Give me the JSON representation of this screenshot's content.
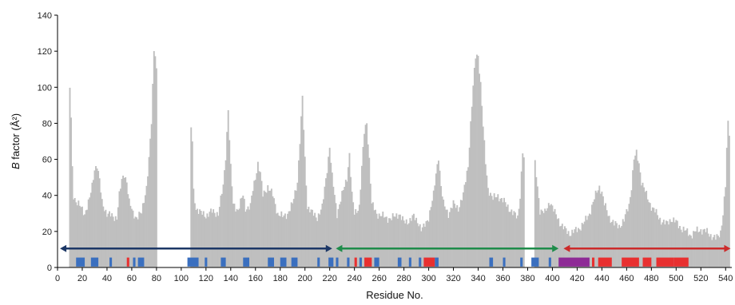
{
  "chart_data": {
    "type": "bar",
    "title": "",
    "xlabel": "Residue No.",
    "ylabel_italic": "B",
    "ylabel_rest": " factor (Å²)",
    "xlim": [
      0,
      545
    ],
    "ylim": [
      0,
      140
    ],
    "xticks": [
      0,
      20,
      40,
      60,
      80,
      100,
      120,
      140,
      160,
      180,
      200,
      220,
      240,
      260,
      280,
      300,
      320,
      340,
      360,
      380,
      400,
      420,
      440,
      460,
      480,
      500,
      520,
      540
    ],
    "yticks": [
      0,
      20,
      40,
      60,
      80,
      100,
      120,
      140
    ],
    "bar_color": "#bfbfbf",
    "profile_keypoints": [
      [
        10,
        100
      ],
      [
        11,
        82
      ],
      [
        12,
        55
      ],
      [
        13,
        40
      ],
      [
        15,
        37
      ],
      [
        18,
        34
      ],
      [
        22,
        30
      ],
      [
        26,
        38
      ],
      [
        28,
        45
      ],
      [
        30,
        55
      ],
      [
        32,
        57
      ],
      [
        34,
        48
      ],
      [
        36,
        36
      ],
      [
        40,
        30
      ],
      [
        45,
        28
      ],
      [
        48,
        28
      ],
      [
        50,
        40
      ],
      [
        52,
        48
      ],
      [
        54,
        52
      ],
      [
        56,
        48
      ],
      [
        58,
        36
      ],
      [
        61,
        30
      ],
      [
        64,
        28
      ],
      [
        68,
        30
      ],
      [
        72,
        45
      ],
      [
        74,
        60
      ],
      [
        76,
        80
      ],
      [
        77,
        100
      ],
      [
        78,
        121
      ],
      [
        79,
        119
      ],
      [
        80,
        110
      ],
      [
        108,
        77
      ],
      [
        109,
        70
      ],
      [
        110,
        42
      ],
      [
        112,
        33
      ],
      [
        116,
        30
      ],
      [
        120,
        29
      ],
      [
        125,
        31
      ],
      [
        130,
        30
      ],
      [
        134,
        45
      ],
      [
        136,
        62
      ],
      [
        138,
        88
      ],
      [
        140,
        55
      ],
      [
        142,
        35
      ],
      [
        146,
        32
      ],
      [
        150,
        40
      ],
      [
        152,
        33
      ],
      [
        156,
        34
      ],
      [
        158,
        43
      ],
      [
        160,
        50
      ],
      [
        162,
        58
      ],
      [
        164,
        52
      ],
      [
        166,
        40
      ],
      [
        170,
        45
      ],
      [
        174,
        40
      ],
      [
        178,
        30
      ],
      [
        182,
        28
      ],
      [
        186,
        30
      ],
      [
        190,
        35
      ],
      [
        194,
        48
      ],
      [
        196,
        70
      ],
      [
        198,
        94
      ],
      [
        200,
        60
      ],
      [
        202,
        34
      ],
      [
        206,
        30
      ],
      [
        210,
        28
      ],
      [
        214,
        33
      ],
      [
        218,
        55
      ],
      [
        220,
        67
      ],
      [
        222,
        50
      ],
      [
        226,
        30
      ],
      [
        230,
        40
      ],
      [
        234,
        50
      ],
      [
        236,
        63
      ],
      [
        238,
        40
      ],
      [
        240,
        30
      ],
      [
        244,
        34
      ],
      [
        246,
        55
      ],
      [
        248,
        75
      ],
      [
        250,
        81
      ],
      [
        252,
        60
      ],
      [
        254,
        35
      ],
      [
        258,
        30
      ],
      [
        264,
        28
      ],
      [
        270,
        27
      ],
      [
        276,
        30
      ],
      [
        280,
        25
      ],
      [
        284,
        26
      ],
      [
        288,
        28
      ],
      [
        292,
        25
      ],
      [
        294,
        21
      ],
      [
        296,
        22
      ],
      [
        300,
        28
      ],
      [
        304,
        40
      ],
      [
        306,
        52
      ],
      [
        308,
        62
      ],
      [
        310,
        45
      ],
      [
        312,
        35
      ],
      [
        316,
        30
      ],
      [
        320,
        35
      ],
      [
        324,
        33
      ],
      [
        328,
        40
      ],
      [
        332,
        57
      ],
      [
        334,
        80
      ],
      [
        336,
        100
      ],
      [
        338,
        117
      ],
      [
        340,
        118
      ],
      [
        342,
        102
      ],
      [
        344,
        78
      ],
      [
        346,
        58
      ],
      [
        348,
        44
      ],
      [
        352,
        38
      ],
      [
        356,
        40
      ],
      [
        360,
        37
      ],
      [
        364,
        34
      ],
      [
        368,
        30
      ],
      [
        372,
        28
      ],
      [
        374,
        40
      ],
      [
        376,
        64
      ],
      [
        377,
        60
      ],
      [
        386,
        57
      ],
      [
        388,
        45
      ],
      [
        390,
        32
      ],
      [
        394,
        30
      ],
      [
        398,
        37
      ],
      [
        402,
        30
      ],
      [
        404,
        28
      ],
      [
        406,
        25
      ],
      [
        410,
        21
      ],
      [
        414,
        19
      ],
      [
        418,
        20
      ],
      [
        422,
        22
      ],
      [
        426,
        25
      ],
      [
        430,
        30
      ],
      [
        434,
        38
      ],
      [
        436,
        42
      ],
      [
        438,
        45
      ],
      [
        440,
        42
      ],
      [
        442,
        35
      ],
      [
        446,
        28
      ],
      [
        450,
        24
      ],
      [
        454,
        23
      ],
      [
        458,
        26
      ],
      [
        462,
        35
      ],
      [
        464,
        45
      ],
      [
        466,
        60
      ],
      [
        468,
        63
      ],
      [
        470,
        58
      ],
      [
        472,
        48
      ],
      [
        476,
        40
      ],
      [
        480,
        34
      ],
      [
        484,
        30
      ],
      [
        488,
        26
      ],
      [
        492,
        24
      ],
      [
        496,
        27
      ],
      [
        500,
        25
      ],
      [
        504,
        22
      ],
      [
        508,
        20
      ],
      [
        512,
        18
      ],
      [
        516,
        20
      ],
      [
        520,
        21
      ],
      [
        524,
        20
      ],
      [
        528,
        18
      ],
      [
        532,
        16
      ],
      [
        534,
        17
      ],
      [
        536,
        20
      ],
      [
        538,
        30
      ],
      [
        540,
        45
      ],
      [
        541,
        65
      ],
      [
        542,
        80
      ],
      [
        543,
        75
      ]
    ],
    "gaps": [
      [
        80.5,
        107.5
      ],
      [
        377.5,
        385.5
      ]
    ],
    "domain_arrows": [
      {
        "x1": 2,
        "x2": 222,
        "color": "#1c3766"
      },
      {
        "x1": 225,
        "x2": 405,
        "color": "#1e8c4a"
      },
      {
        "x1": 409,
        "x2": 544,
        "color": "#cc2a2a"
      }
    ],
    "arrow_y_value": 10.5,
    "ss_y_range": [
      0.5,
      5.5
    ],
    "secondary_structure": [
      {
        "start": 15,
        "end": 22,
        "color": "#3a6fbf"
      },
      {
        "start": 27,
        "end": 33,
        "color": "#3a6fbf"
      },
      {
        "start": 42,
        "end": 44,
        "color": "#3a6fbf"
      },
      {
        "start": 56,
        "end": 58,
        "color": "#e83030"
      },
      {
        "start": 61,
        "end": 63,
        "color": "#3a6fbf"
      },
      {
        "start": 65,
        "end": 70,
        "color": "#3a6fbf"
      },
      {
        "start": 105,
        "end": 114,
        "color": "#3a6fbf"
      },
      {
        "start": 119,
        "end": 121,
        "color": "#3a6fbf"
      },
      {
        "start": 132,
        "end": 136,
        "color": "#3a6fbf"
      },
      {
        "start": 150,
        "end": 155,
        "color": "#3a6fbf"
      },
      {
        "start": 170,
        "end": 175,
        "color": "#3a6fbf"
      },
      {
        "start": 180,
        "end": 185,
        "color": "#3a6fbf"
      },
      {
        "start": 189,
        "end": 194,
        "color": "#3a6fbf"
      },
      {
        "start": 210,
        "end": 212,
        "color": "#3a6fbf"
      },
      {
        "start": 219,
        "end": 223,
        "color": "#3a6fbf"
      },
      {
        "start": 225,
        "end": 227,
        "color": "#3a6fbf"
      },
      {
        "start": 234,
        "end": 236,
        "color": "#3a6fbf"
      },
      {
        "start": 240,
        "end": 242,
        "color": "#e83030"
      },
      {
        "start": 244,
        "end": 246,
        "color": "#3a6fbf"
      },
      {
        "start": 248,
        "end": 254,
        "color": "#e83030"
      },
      {
        "start": 256,
        "end": 260,
        "color": "#3a6fbf"
      },
      {
        "start": 275,
        "end": 278,
        "color": "#3a6fbf"
      },
      {
        "start": 284,
        "end": 286,
        "color": "#3a6fbf"
      },
      {
        "start": 292,
        "end": 294,
        "color": "#3a6fbf"
      },
      {
        "start": 296,
        "end": 305,
        "color": "#e83030"
      },
      {
        "start": 305,
        "end": 308,
        "color": "#3a6fbf"
      },
      {
        "start": 349,
        "end": 352,
        "color": "#3a6fbf"
      },
      {
        "start": 360,
        "end": 362,
        "color": "#3a6fbf"
      },
      {
        "start": 374,
        "end": 376,
        "color": "#3a6fbf"
      },
      {
        "start": 383,
        "end": 389,
        "color": "#3a6fbf"
      },
      {
        "start": 397,
        "end": 399,
        "color": "#3a6fbf"
      },
      {
        "start": 405,
        "end": 430,
        "color": "#8e2b96"
      },
      {
        "start": 432,
        "end": 434,
        "color": "#e83030"
      },
      {
        "start": 437,
        "end": 448,
        "color": "#e83030"
      },
      {
        "start": 456,
        "end": 470,
        "color": "#e83030"
      },
      {
        "start": 473,
        "end": 480,
        "color": "#e83030"
      },
      {
        "start": 484,
        "end": 498,
        "color": "#e83030"
      },
      {
        "start": 498,
        "end": 510,
        "color": "#e83030"
      }
    ]
  }
}
